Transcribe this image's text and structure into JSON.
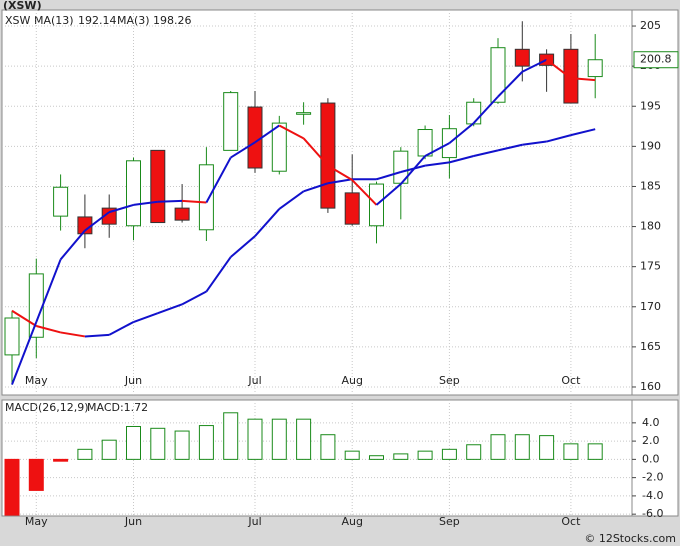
{
  "chart_data": [
    {
      "type": "candlestick",
      "title": "(XSW)",
      "legend": [
        {
          "name": "XSW"
        },
        {
          "name": "MA(13)",
          "value": 192.14
        },
        {
          "name": "MA(3)",
          "value": 198.26
        }
      ],
      "categories": [
        null,
        "May",
        null,
        null,
        null,
        "Jun",
        null,
        null,
        null,
        null,
        "Jul",
        null,
        null,
        null,
        "Aug",
        null,
        null,
        null,
        "Sep",
        null,
        null,
        null,
        null,
        "Oct",
        null
      ],
      "open": [
        164.0,
        166.2,
        181.3,
        181.2,
        182.3,
        180.1,
        189.5,
        182.3,
        179.6,
        189.5,
        194.9,
        186.9,
        194.0,
        195.4,
        184.2,
        180.1,
        185.4,
        188.8,
        188.6,
        192.8,
        195.5,
        202.1,
        201.5,
        202.1,
        198.7
      ],
      "high": [
        169.5,
        176.0,
        186.5,
        184.0,
        184.0,
        188.6,
        189.5,
        185.3,
        189.9,
        196.9,
        196.9,
        193.8,
        195.5,
        196.0,
        189.0,
        185.6,
        189.9,
        192.6,
        193.9,
        196.0,
        203.5,
        205.6,
        202.1,
        204.0,
        204.0
      ],
      "low": [
        160.3,
        163.6,
        179.5,
        177.3,
        178.6,
        178.3,
        180.5,
        180.5,
        178.2,
        189.5,
        186.7,
        186.5,
        192.7,
        181.7,
        180.1,
        177.9,
        180.9,
        188.4,
        186.0,
        192.5,
        195.3,
        198.1,
        196.8,
        195.4,
        196.0
      ],
      "close": [
        168.6,
        174.1,
        184.9,
        179.1,
        180.3,
        188.2,
        180.5,
        180.8,
        187.7,
        196.7,
        187.3,
        192.9,
        194.2,
        182.3,
        180.3,
        185.3,
        189.4,
        192.1,
        192.2,
        195.5,
        202.3,
        200.0,
        200.1,
        195.4,
        200.8
      ],
      "last_price": 200.8,
      "up_color": "#1a8a1a",
      "down_color": "#ee1111",
      "rise_color": "#1111cc",
      "fall_color": "#ee1111",
      "series": [
        {
          "name": "MA(13)",
          "values": [
            169.5,
            167.6,
            166.8,
            166.3,
            166.5,
            168.1,
            169.2,
            170.3,
            171.9,
            176.2,
            178.8,
            182.2,
            184.4,
            185.4,
            185.9,
            185.9,
            186.8,
            187.6,
            188.0,
            188.8,
            189.5,
            190.2,
            190.6,
            191.4,
            192.14
          ]
        },
        {
          "name": "MA(3)",
          "values": [
            160.3,
            168.1,
            175.9,
            179.5,
            181.8,
            182.7,
            183.1,
            183.2,
            183.0,
            188.6,
            190.5,
            192.6,
            191.0,
            187.6,
            185.8,
            182.7,
            185.3,
            188.8,
            190.4,
            192.9,
            196.2,
            199.3,
            200.8,
            198.5,
            198.26
          ]
        }
      ],
      "ylim": [
        159,
        207
      ],
      "yticks": [
        160,
        165,
        170,
        175,
        180,
        185,
        190,
        195,
        200,
        205
      ],
      "grid": true
    },
    {
      "type": "bar",
      "title": "MACD(26,12,9)",
      "label": "MACD:1.72",
      "categories": [
        null,
        "May",
        null,
        null,
        null,
        "Jun",
        null,
        null,
        null,
        null,
        "Jul",
        null,
        null,
        null,
        "Aug",
        null,
        null,
        null,
        "Sep",
        null,
        null,
        null,
        null,
        "Oct",
        null
      ],
      "values": [
        -6.1,
        -3.4,
        -0.2,
        1.1,
        2.1,
        3.6,
        3.4,
        3.1,
        3.7,
        5.1,
        4.4,
        4.4,
        4.4,
        2.7,
        0.9,
        0.4,
        0.6,
        0.9,
        1.1,
        1.6,
        2.7,
        2.7,
        2.6,
        1.7,
        1.7
      ],
      "up_color": "#1a8a1a",
      "down_color": "#ee1111",
      "ylim": [
        -6.2,
        6.5
      ],
      "yticks": [
        {
          "value": 4,
          "label": "4.0"
        },
        {
          "value": 2,
          "label": "2.0"
        },
        {
          "value": 0,
          "label": "0.0"
        },
        {
          "value": -2,
          "label": "-2.0"
        },
        {
          "value": -4,
          "label": "-4.0"
        },
        {
          "value": -6,
          "label": "-6.0"
        }
      ],
      "grid": true
    },
    {
      "type": "footer",
      "text": "© 12Stocks.com"
    }
  ]
}
